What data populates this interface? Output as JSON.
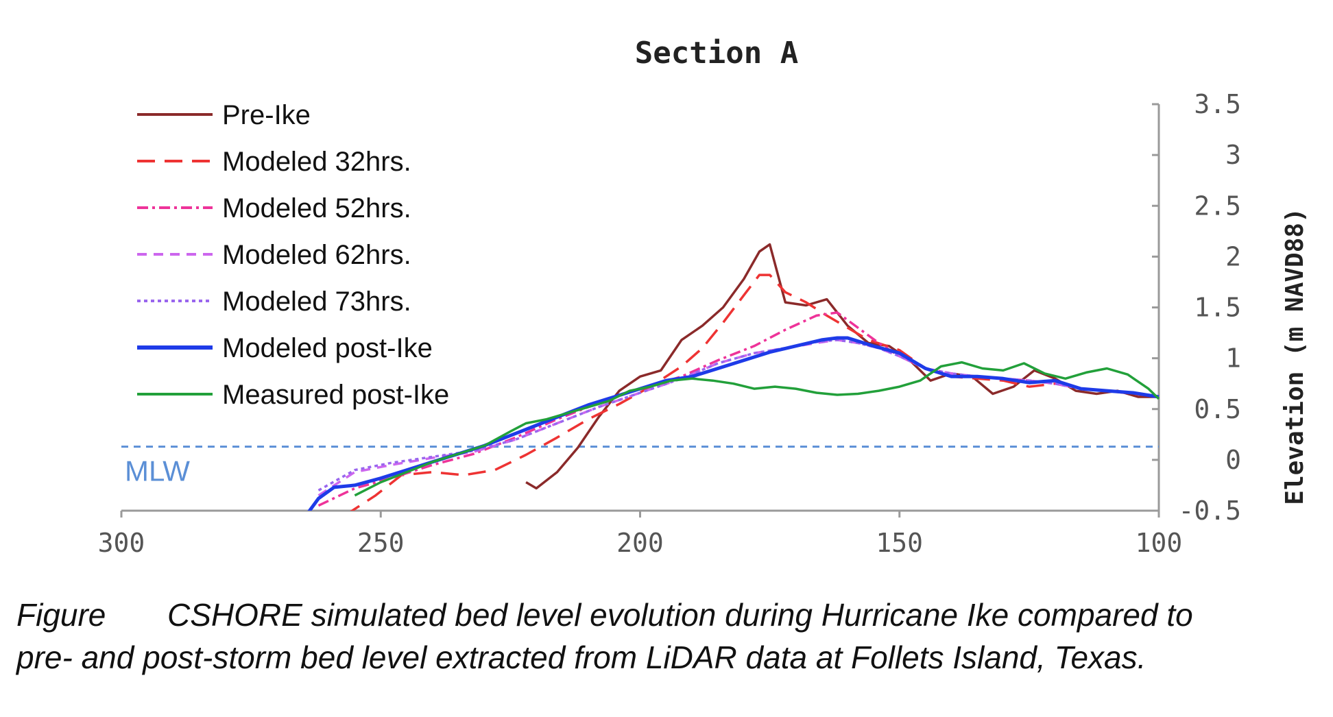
{
  "caption": {
    "label": "Figure",
    "text_line1": "CSHORE simulated bed level evolution during Hurricane Ike compared to",
    "text_line2": "pre- and post-storm bed level extracted from LiDAR data at Follets Island, Texas."
  },
  "chart_data": {
    "type": "line",
    "title": "Section A",
    "xlabel": "",
    "ylabel": "Elevation (m NAVD88)",
    "xlim": [
      300,
      100
    ],
    "x_reversed": true,
    "ylim": [
      -0.5,
      3.5
    ],
    "x_ticks": [
      "300",
      "250",
      "200",
      "150",
      "100"
    ],
    "y_ticks": [
      "-0.5",
      "0",
      "0.5",
      "1",
      "1.5",
      "2",
      "2.5",
      "3",
      "3.5"
    ],
    "y_axis_position": "right",
    "grid": false,
    "legend_position": "top-left",
    "reference_line": {
      "label": "MLW",
      "y": 0.13,
      "color": "#5b8fd6"
    },
    "series": [
      {
        "name": "Pre-Ike",
        "color": "#8b2a2a",
        "dash": "",
        "x": [
          222,
          220,
          216,
          212,
          208,
          204,
          200,
          196,
          192,
          188,
          184,
          180,
          177,
          175,
          172,
          168,
          164,
          160,
          156,
          152,
          148,
          144,
          140,
          136,
          132,
          128,
          124,
          120,
          116,
          112,
          108,
          104,
          100
        ],
        "y": [
          -0.22,
          -0.28,
          -0.12,
          0.12,
          0.42,
          0.68,
          0.82,
          0.88,
          1.18,
          1.32,
          1.5,
          1.78,
          2.05,
          2.12,
          1.55,
          1.52,
          1.58,
          1.32,
          1.15,
          1.12,
          0.98,
          0.78,
          0.85,
          0.82,
          0.65,
          0.72,
          0.88,
          0.8,
          0.68,
          0.65,
          0.68,
          0.62,
          0.62
        ]
      },
      {
        "name": "Modeled 32hrs.",
        "color": "#ee3333",
        "dash": "26,14",
        "x": [
          257,
          251,
          246,
          240,
          234,
          228,
          222,
          216,
          210,
          204,
          198,
          192,
          188,
          184,
          180,
          177,
          175,
          172,
          168,
          164,
          160,
          156,
          150,
          145,
          140,
          135,
          130,
          125,
          120,
          115,
          110,
          105,
          100
        ],
        "y": [
          -0.55,
          -0.35,
          -0.15,
          -0.12,
          -0.15,
          -0.1,
          0.05,
          0.22,
          0.4,
          0.55,
          0.72,
          0.92,
          1.1,
          1.35,
          1.62,
          1.82,
          1.82,
          1.65,
          1.55,
          1.42,
          1.3,
          1.18,
          1.08,
          0.9,
          0.82,
          0.8,
          0.78,
          0.72,
          0.75,
          0.7,
          0.68,
          0.65,
          0.62
        ]
      },
      {
        "name": "Modeled 52hrs.",
        "color": "#ee3399",
        "dash": "16,6,4,6",
        "x": [
          262,
          255,
          248,
          240,
          232,
          224,
          216,
          208,
          200,
          192,
          185,
          178,
          172,
          166,
          162,
          158,
          154,
          150,
          145,
          140,
          135,
          130,
          125,
          120,
          115,
          110,
          105,
          100
        ],
        "y": [
          -0.45,
          -0.28,
          -0.18,
          -0.05,
          0.06,
          0.22,
          0.4,
          0.56,
          0.7,
          0.82,
          0.98,
          1.12,
          1.28,
          1.42,
          1.45,
          1.3,
          1.15,
          1.02,
          0.9,
          0.85,
          0.82,
          0.8,
          0.78,
          0.75,
          0.7,
          0.68,
          0.66,
          0.62
        ]
      },
      {
        "name": "Modeled 62hrs.",
        "color": "#cc66ee",
        "dash": "14,10",
        "x": [
          262,
          255,
          248,
          240,
          232,
          224,
          216,
          208,
          200,
          192,
          185,
          178,
          172,
          166,
          162,
          158,
          154,
          150,
          145,
          140,
          135,
          130,
          125,
          120,
          115,
          110,
          105,
          100
        ],
        "y": [
          -0.35,
          -0.12,
          -0.05,
          0.02,
          0.08,
          0.2,
          0.36,
          0.52,
          0.66,
          0.8,
          0.95,
          1.05,
          1.1,
          1.15,
          1.18,
          1.15,
          1.1,
          1.02,
          0.9,
          0.85,
          0.82,
          0.8,
          0.78,
          0.75,
          0.7,
          0.68,
          0.66,
          0.62
        ]
      },
      {
        "name": "Modeled 73hrs.",
        "color": "#9966ee",
        "dash": "5,5",
        "x": [
          262,
          255,
          248,
          240,
          232,
          224,
          216,
          208,
          200,
          192,
          185,
          178,
          172,
          166,
          162,
          158,
          154,
          150,
          145,
          140,
          135,
          130,
          125,
          120,
          115,
          110,
          105,
          100
        ],
        "y": [
          -0.3,
          -0.1,
          -0.03,
          0.03,
          0.09,
          0.2,
          0.36,
          0.52,
          0.66,
          0.8,
          0.95,
          1.05,
          1.1,
          1.16,
          1.18,
          1.15,
          1.1,
          1.02,
          0.9,
          0.85,
          0.82,
          0.8,
          0.78,
          0.75,
          0.7,
          0.68,
          0.66,
          0.62
        ]
      },
      {
        "name": "Modeled post-Ike",
        "color": "#1e3be8",
        "dash": "",
        "x": [
          264,
          262,
          259,
          255,
          250,
          245,
          240,
          235,
          230,
          225,
          220,
          215,
          210,
          205,
          200,
          195,
          190,
          185,
          180,
          175,
          170,
          165,
          162,
          160,
          155,
          150,
          145,
          140,
          135,
          130,
          125,
          120,
          115,
          110,
          105,
          100
        ],
        "y": [
          -0.52,
          -0.38,
          -0.27,
          -0.25,
          -0.18,
          -0.1,
          -0.02,
          0.06,
          0.14,
          0.24,
          0.34,
          0.44,
          0.54,
          0.62,
          0.7,
          0.78,
          0.82,
          0.9,
          0.98,
          1.06,
          1.12,
          1.18,
          1.2,
          1.2,
          1.12,
          1.05,
          0.9,
          0.82,
          0.82,
          0.8,
          0.76,
          0.78,
          0.7,
          0.68,
          0.66,
          0.62
        ]
      },
      {
        "name": "Measured post-Ike",
        "color": "#22a03a",
        "dash": "",
        "x": [
          255,
          250,
          245,
          240,
          235,
          230,
          225,
          222,
          218,
          214,
          210,
          206,
          202,
          198,
          194,
          190,
          186,
          182,
          178,
          174,
          170,
          166,
          162,
          158,
          154,
          150,
          146,
          142,
          138,
          134,
          130,
          126,
          122,
          118,
          114,
          110,
          106,
          102,
          100
        ],
        "y": [
          -0.35,
          -0.22,
          -0.12,
          -0.02,
          0.06,
          0.14,
          0.28,
          0.36,
          0.4,
          0.46,
          0.52,
          0.58,
          0.68,
          0.72,
          0.78,
          0.8,
          0.78,
          0.75,
          0.7,
          0.72,
          0.7,
          0.66,
          0.64,
          0.65,
          0.68,
          0.72,
          0.78,
          0.92,
          0.96,
          0.9,
          0.88,
          0.95,
          0.85,
          0.8,
          0.86,
          0.9,
          0.84,
          0.7,
          0.6
        ]
      }
    ]
  }
}
